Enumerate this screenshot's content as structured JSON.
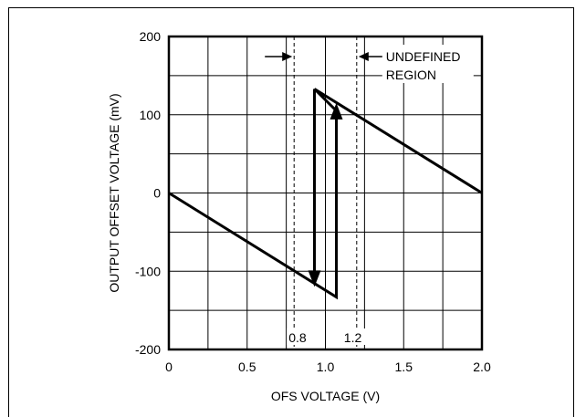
{
  "chart_data": {
    "type": "line",
    "xlabel": "OFS VOLTAGE (V)",
    "ylabel": "OUTPUT OFFSET  VOLTAGE (mV)",
    "xlim": [
      0,
      2.0
    ],
    "ylim": [
      -200,
      200
    ],
    "x_ticks": [
      0,
      0.5,
      1.0,
      1.5,
      2.0
    ],
    "x_tick_labels": [
      "0",
      "0.5",
      "1.0",
      "1.5",
      "2.0"
    ],
    "y_ticks": [
      -200,
      -100,
      0,
      100,
      200
    ],
    "y_tick_labels": [
      "-200",
      "-100",
      "0",
      "100",
      "200"
    ],
    "grid": true,
    "series": [
      {
        "points": [
          [
            0,
            0
          ],
          [
            1.07,
            -133
          ],
          [
            1.07,
            105
          ],
          [
            0.93,
            133
          ],
          [
            2.0,
            0
          ]
        ]
      }
    ],
    "arrows": [
      {
        "from": [
          0.93,
          133
        ],
        "to": [
          0.93,
          -120
        ]
      },
      {
        "from": [
          1.07,
          -100
        ],
        "to": [
          1.07,
          115
        ]
      }
    ],
    "undefined_region": {
      "x_start": 0.8,
      "x_end": 1.2,
      "start_label": "0.8",
      "end_label": "1.2",
      "label_line1": "UNDEFINED",
      "label_line2": "REGION"
    }
  }
}
